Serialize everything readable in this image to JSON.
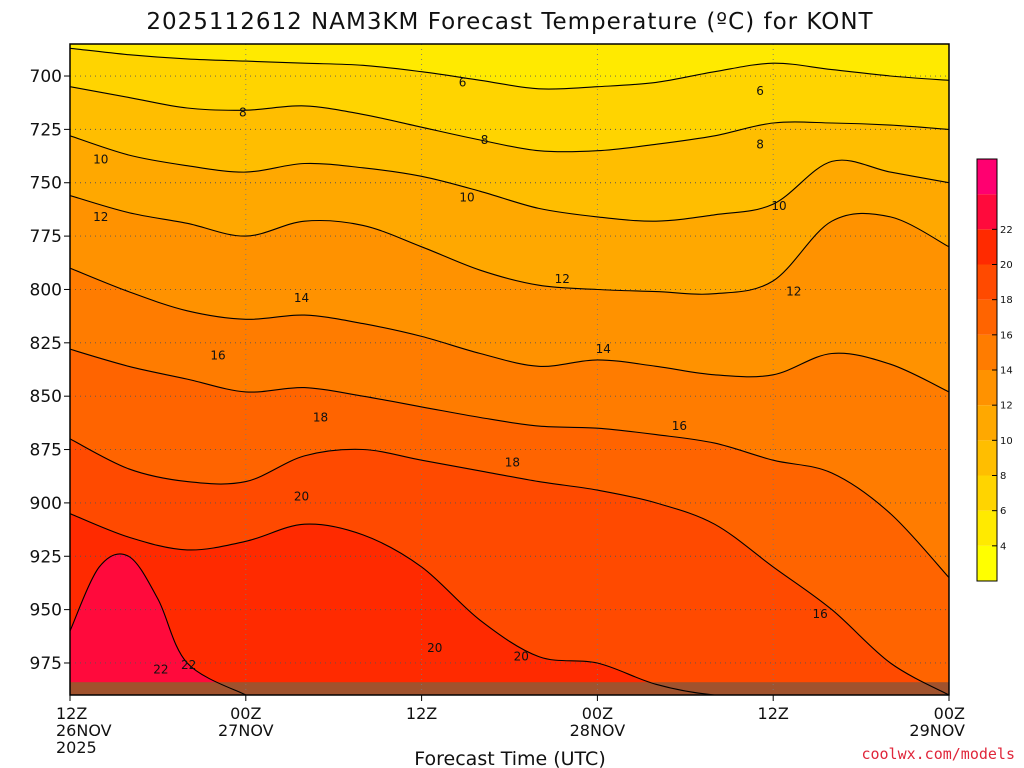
{
  "chart_data": {
    "type": "heatmap",
    "title": "2025112612 NAM3KM Forecast Temperature (ºC) for KONT",
    "xlabel": "Forecast Time (UTC)",
    "ylabel": "",
    "credit": "coolwx.com/models",
    "x_ticks": [
      {
        "hour": 0,
        "label": "12Z",
        "date": "26NOV",
        "year": "2025"
      },
      {
        "hour": 12,
        "label": "00Z",
        "date": "27NOV"
      },
      {
        "hour": 24,
        "label": "12Z",
        "date": ""
      },
      {
        "hour": 36,
        "label": "00Z",
        "date": "28NOV"
      },
      {
        "hour": 48,
        "label": "12Z",
        "date": ""
      },
      {
        "hour": 60,
        "label": "00Z",
        "date": "29NOV"
      }
    ],
    "xlim": [
      0,
      60
    ],
    "ylim": [
      990,
      685
    ],
    "y_ticks": [
      700,
      725,
      750,
      775,
      800,
      825,
      850,
      875,
      900,
      925,
      950,
      975
    ],
    "colorbar": {
      "levels": [
        2,
        4,
        6,
        8,
        10,
        12,
        14,
        16,
        18,
        20,
        22,
        24
      ],
      "tick_labels": [
        4,
        6,
        8,
        10,
        12,
        14,
        16,
        18,
        20,
        22
      ],
      "colors": [
        "#ffff00",
        "#ffea00",
        "#ffd400",
        "#ffbe00",
        "#ffa800",
        "#ff9200",
        "#ff7c00",
        "#ff6400",
        "#ff4a00",
        "#ff2a00",
        "#ff0a3c",
        "#ff0070"
      ]
    },
    "contour_levels": [
      6,
      8,
      10,
      12,
      14,
      16,
      18,
      20,
      22
    ],
    "series": [
      {
        "name": "6",
        "value": 6,
        "hours": [
          0,
          4,
          8,
          12,
          16,
          20,
          24,
          28,
          32,
          36,
          40,
          44,
          48,
          52,
          56,
          60
        ],
        "pressure": [
          687,
          690,
          692,
          693,
          694,
          695,
          698,
          702,
          706,
          705,
          703,
          698,
          694,
          697,
          700,
          702
        ]
      },
      {
        "name": "8",
        "value": 8,
        "hours": [
          0,
          4,
          8,
          12,
          16,
          20,
          24,
          28,
          32,
          36,
          40,
          44,
          48,
          52,
          56,
          60
        ],
        "pressure": [
          705,
          710,
          715,
          716,
          714,
          718,
          724,
          730,
          735,
          735,
          732,
          728,
          722,
          722,
          723,
          725
        ]
      },
      {
        "name": "10",
        "value": 10,
        "hours": [
          0,
          4,
          8,
          12,
          16,
          20,
          24,
          28,
          32,
          36,
          40,
          44,
          48,
          52,
          56,
          60
        ],
        "pressure": [
          728,
          737,
          742,
          745,
          741,
          743,
          747,
          754,
          762,
          766,
          768,
          765,
          760,
          740,
          745,
          750
        ]
      },
      {
        "name": "12",
        "value": 12,
        "hours": [
          0,
          4,
          8,
          12,
          16,
          20,
          24,
          28,
          32,
          36,
          40,
          44,
          48,
          52,
          56,
          60
        ],
        "pressure": [
          756,
          764,
          769,
          775,
          768,
          770,
          780,
          791,
          798,
          800,
          801,
          802,
          796,
          768,
          766,
          780
        ]
      },
      {
        "name": "14",
        "value": 14,
        "hours": [
          0,
          4,
          8,
          12,
          16,
          20,
          24,
          28,
          32,
          36,
          40,
          44,
          48,
          52,
          56,
          60
        ],
        "pressure": [
          790,
          801,
          810,
          814,
          812,
          816,
          822,
          830,
          836,
          833,
          836,
          840,
          840,
          830,
          835,
          848
        ]
      },
      {
        "name": "16",
        "value": 16,
        "hours": [
          0,
          4,
          8,
          12,
          16,
          20,
          24,
          28,
          32,
          36,
          40,
          44,
          48,
          52,
          56,
          60
        ],
        "pressure": [
          828,
          836,
          842,
          848,
          846,
          850,
          855,
          860,
          864,
          865,
          868,
          872,
          880,
          886,
          905,
          935
        ]
      },
      {
        "name": "18",
        "value": 18,
        "hours": [
          0,
          4,
          8,
          12,
          16,
          20,
          24,
          28,
          32,
          36,
          40,
          44,
          48,
          52,
          56,
          60
        ],
        "pressure": [
          870,
          884,
          890,
          890,
          878,
          875,
          880,
          885,
          890,
          894,
          900,
          910,
          930,
          950,
          975,
          990
        ]
      },
      {
        "name": "20",
        "value": 20,
        "hours": [
          0,
          4,
          8,
          12,
          16,
          20,
          24,
          28,
          32,
          36,
          40,
          44,
          48,
          52,
          56,
          60
        ],
        "pressure": [
          905,
          916,
          922,
          918,
          910,
          915,
          930,
          955,
          972,
          975,
          985,
          990,
          990,
          990,
          990,
          990
        ]
      },
      {
        "name": "22",
        "value": 22,
        "hours": [
          0,
          2,
          4,
          6,
          8,
          12
        ],
        "pressure": [
          960,
          930,
          925,
          945,
          975,
          990
        ]
      }
    ],
    "contour_labels": [
      {
        "text": "6",
        "hour": 26.8,
        "pressure": 703
      },
      {
        "text": "6",
        "hour": 47.1,
        "pressure": 707
      },
      {
        "text": "8",
        "hour": 11.8,
        "pressure": 717
      },
      {
        "text": "8",
        "hour": 28.3,
        "pressure": 730
      },
      {
        "text": "8",
        "hour": 47.1,
        "pressure": 732
      },
      {
        "text": "10",
        "hour": 2.1,
        "pressure": 739
      },
      {
        "text": "10",
        "hour": 27.1,
        "pressure": 757
      },
      {
        "text": "10",
        "hour": 48.4,
        "pressure": 761
      },
      {
        "text": "12",
        "hour": 2.1,
        "pressure": 766
      },
      {
        "text": "12",
        "hour": 33.6,
        "pressure": 795
      },
      {
        "text": "12",
        "hour": 49.4,
        "pressure": 801
      },
      {
        "text": "14",
        "hour": 15.8,
        "pressure": 804
      },
      {
        "text": "14",
        "hour": 36.4,
        "pressure": 828
      },
      {
        "text": "16",
        "hour": 10.1,
        "pressure": 831
      },
      {
        "text": "16",
        "hour": 41.6,
        "pressure": 864
      },
      {
        "text": "16",
        "hour": 51.2,
        "pressure": 952
      },
      {
        "text": "18",
        "hour": 17.1,
        "pressure": 860
      },
      {
        "text": "18",
        "hour": 30.2,
        "pressure": 881
      },
      {
        "text": "20",
        "hour": 15.8,
        "pressure": 897
      },
      {
        "text": "20",
        "hour": 24.9,
        "pressure": 968
      },
      {
        "text": "20",
        "hour": 30.8,
        "pressure": 972
      },
      {
        "text": "22",
        "hour": 6.2,
        "pressure": 978
      },
      {
        "text": "22",
        "hour": 8.1,
        "pressure": 976
      }
    ],
    "surface_pressure": 984,
    "surface_color": "#a0522d",
    "grid": true
  }
}
